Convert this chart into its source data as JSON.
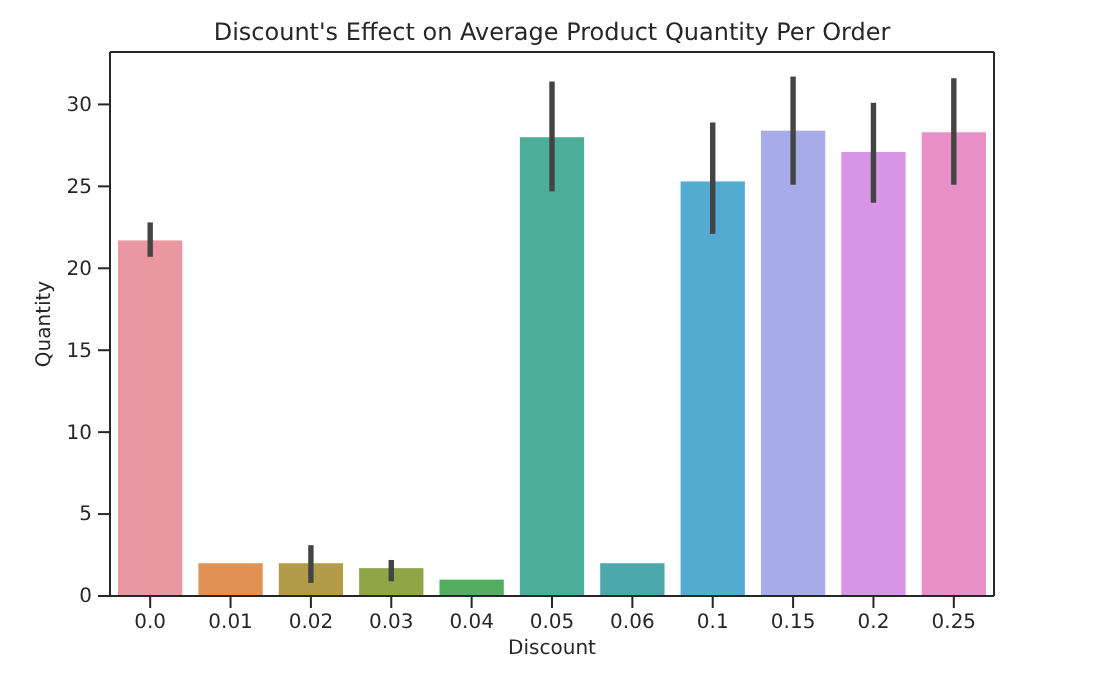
{
  "chart_data": {
    "type": "bar",
    "title": "Discount's Effect on Average Product Quantity Per Order",
    "xlabel": "Discount",
    "ylabel": "Quantity",
    "categories": [
      "0.0",
      "0.01",
      "0.02",
      "0.03",
      "0.04",
      "0.05",
      "0.06",
      "0.1",
      "0.15",
      "0.2",
      "0.25"
    ],
    "values": [
      21.7,
      2.0,
      2.0,
      1.7,
      1.0,
      28.0,
      2.0,
      25.3,
      28.4,
      27.1,
      28.3
    ],
    "colors": [
      "#ea96a3",
      "#e19153",
      "#b29c47",
      "#8fa548",
      "#52ad5d",
      "#4aae98",
      "#4ba9ab",
      "#54abd2",
      "#a8abe9",
      "#d895e8",
      "#e98fc8"
    ],
    "errors": [
      [
        20.7,
        22.8
      ],
      null,
      [
        0.8,
        3.1
      ],
      [
        0.9,
        2.2
      ],
      null,
      [
        24.7,
        31.4
      ],
      null,
      [
        22.1,
        28.9
      ],
      [
        25.1,
        31.7
      ],
      [
        24.0,
        30.1
      ],
      [
        25.1,
        31.6
      ]
    ],
    "ylim": [
      0,
      33.2
    ],
    "yticks": [
      0,
      5,
      10,
      15,
      20,
      25,
      30
    ],
    "grid": false
  }
}
